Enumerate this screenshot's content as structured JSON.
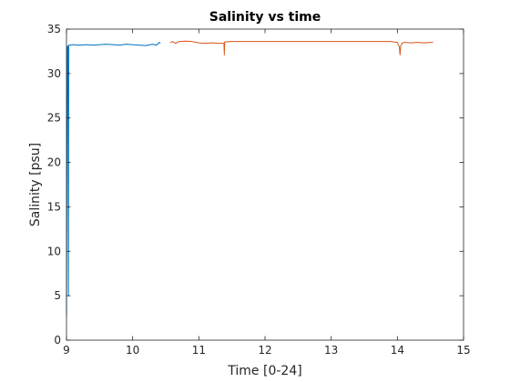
{
  "chart_data": {
    "type": "line",
    "title": "Salinity vs time",
    "xlabel": "Time [0-24]",
    "ylabel": "Salinity [psu]",
    "xlim": [
      9,
      15
    ],
    "ylim": [
      0,
      35
    ],
    "xticks": [
      "9",
      "10",
      "11",
      "12",
      "13",
      "14",
      "15"
    ],
    "yticks": [
      "0",
      "5",
      "10",
      "15",
      "20",
      "25",
      "30",
      "35"
    ],
    "grid": false,
    "legend": "none",
    "series": [
      {
        "color": "#0072BD",
        "points": [
          [
            9.0,
            2.8
          ],
          [
            9.01,
            33.0
          ],
          [
            9.02,
            33.1
          ],
          [
            9.03,
            5.0
          ],
          [
            9.035,
            33.2
          ],
          [
            9.1,
            33.25
          ],
          [
            9.2,
            33.2
          ],
          [
            9.3,
            33.25
          ],
          [
            9.4,
            33.2
          ],
          [
            9.5,
            33.25
          ],
          [
            9.6,
            33.3
          ],
          [
            9.7,
            33.25
          ],
          [
            9.8,
            33.2
          ],
          [
            9.9,
            33.3
          ],
          [
            10.0,
            33.25
          ],
          [
            10.1,
            33.2
          ],
          [
            10.2,
            33.15
          ],
          [
            10.3,
            33.3
          ],
          [
            10.36,
            33.2
          ],
          [
            10.4,
            33.5
          ],
          [
            10.42,
            33.4
          ]
        ]
      },
      {
        "color": "#D95319",
        "points": [
          [
            10.57,
            33.5
          ],
          [
            10.6,
            33.6
          ],
          [
            10.65,
            33.4
          ],
          [
            10.7,
            33.6
          ],
          [
            10.8,
            33.65
          ],
          [
            10.9,
            33.6
          ],
          [
            11.0,
            33.45
          ],
          [
            11.1,
            33.4
          ],
          [
            11.2,
            33.45
          ],
          [
            11.3,
            33.4
          ],
          [
            11.38,
            33.4
          ],
          [
            11.385,
            32.1
          ],
          [
            11.39,
            33.55
          ],
          [
            11.5,
            33.6
          ],
          [
            11.8,
            33.6
          ],
          [
            12.1,
            33.6
          ],
          [
            12.4,
            33.6
          ],
          [
            12.7,
            33.6
          ],
          [
            13.0,
            33.6
          ],
          [
            13.3,
            33.6
          ],
          [
            13.6,
            33.6
          ],
          [
            13.9,
            33.6
          ],
          [
            14.0,
            33.5
          ],
          [
            14.03,
            33.0
          ],
          [
            14.04,
            32.1
          ],
          [
            14.05,
            33.1
          ],
          [
            14.07,
            33.4
          ],
          [
            14.1,
            33.5
          ],
          [
            14.2,
            33.45
          ],
          [
            14.3,
            33.5
          ],
          [
            14.4,
            33.45
          ],
          [
            14.5,
            33.5
          ],
          [
            14.54,
            33.5
          ]
        ]
      }
    ]
  }
}
